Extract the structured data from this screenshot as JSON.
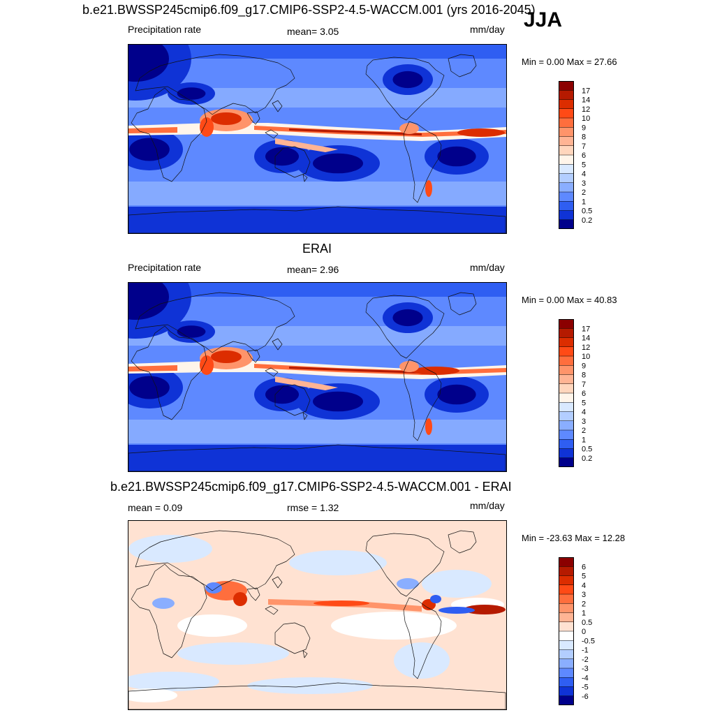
{
  "season": "JJA",
  "panels": [
    {
      "title": "b.e21.BWSSP245cmip6.f09_g17.CMIP6-SSP2-4.5-WACCM.001 (yrs 2016-2045)",
      "left_label": "Precipitation rate",
      "center_label": "mean=   3.05",
      "units": "mm/day",
      "minmax": "Min =   0.00 Max =  27.66",
      "colorbar": {
        "labels": [
          "17",
          "14",
          "12",
          "10",
          "9",
          "8",
          "7",
          "6",
          "5",
          "4",
          "3",
          "2",
          "1",
          "0.5",
          "0.2"
        ],
        "colors": [
          "#8b0000",
          "#b51a00",
          "#dc2d00",
          "#ff4a16",
          "#ff6e3d",
          "#ff946a",
          "#ffb494",
          "#ffd6bd",
          "#fff5ea",
          "#d9e9ff",
          "#b3ceff",
          "#8aaeff",
          "#5e89ff",
          "#2f5ef2",
          "#0f33d6",
          "#00008b"
        ]
      },
      "map_style": "model"
    },
    {
      "title": "ERAI",
      "left_label": "Precipitation rate",
      "center_label": "mean=   2.96",
      "units": "mm/day",
      "minmax": "Min =   0.00 Max =  40.83",
      "colorbar": {
        "labels": [
          "17",
          "14",
          "12",
          "10",
          "9",
          "8",
          "7",
          "6",
          "5",
          "4",
          "3",
          "2",
          "1",
          "0.5",
          "0.2"
        ],
        "colors": [
          "#8b0000",
          "#b51a00",
          "#dc2d00",
          "#ff4a16",
          "#ff6e3d",
          "#ff946a",
          "#ffb494",
          "#ffd6bd",
          "#fff5ea",
          "#d9e9ff",
          "#b3ceff",
          "#8aaeff",
          "#5e89ff",
          "#2f5ef2",
          "#0f33d6",
          "#00008b"
        ]
      },
      "map_style": "obs"
    },
    {
      "title": "b.e21.BWSSP245cmip6.f09_g17.CMIP6-SSP2-4.5-WACCM.001 - ERAI",
      "left_label": "mean =   0.09",
      "center_label": "rmse =   1.32",
      "units": "mm/day",
      "minmax": "Min = -23.63 Max =  12.28",
      "colorbar": {
        "labels": [
          "6",
          "5",
          "4",
          "3",
          "2",
          "1",
          "0.5",
          "0",
          "-0.5",
          "-1",
          "-2",
          "-3",
          "-4",
          "-5",
          "-6"
        ],
        "colors": [
          "#8b0000",
          "#b51a00",
          "#dc2d00",
          "#ff4a16",
          "#ff6e3d",
          "#ff946a",
          "#ffb494",
          "#ffe2d2",
          "#ffffff",
          "#d9e9ff",
          "#b3ceff",
          "#8aaeff",
          "#5e89ff",
          "#2f5ef2",
          "#0f33d6",
          "#00008b"
        ]
      },
      "map_style": "diff"
    }
  ]
}
